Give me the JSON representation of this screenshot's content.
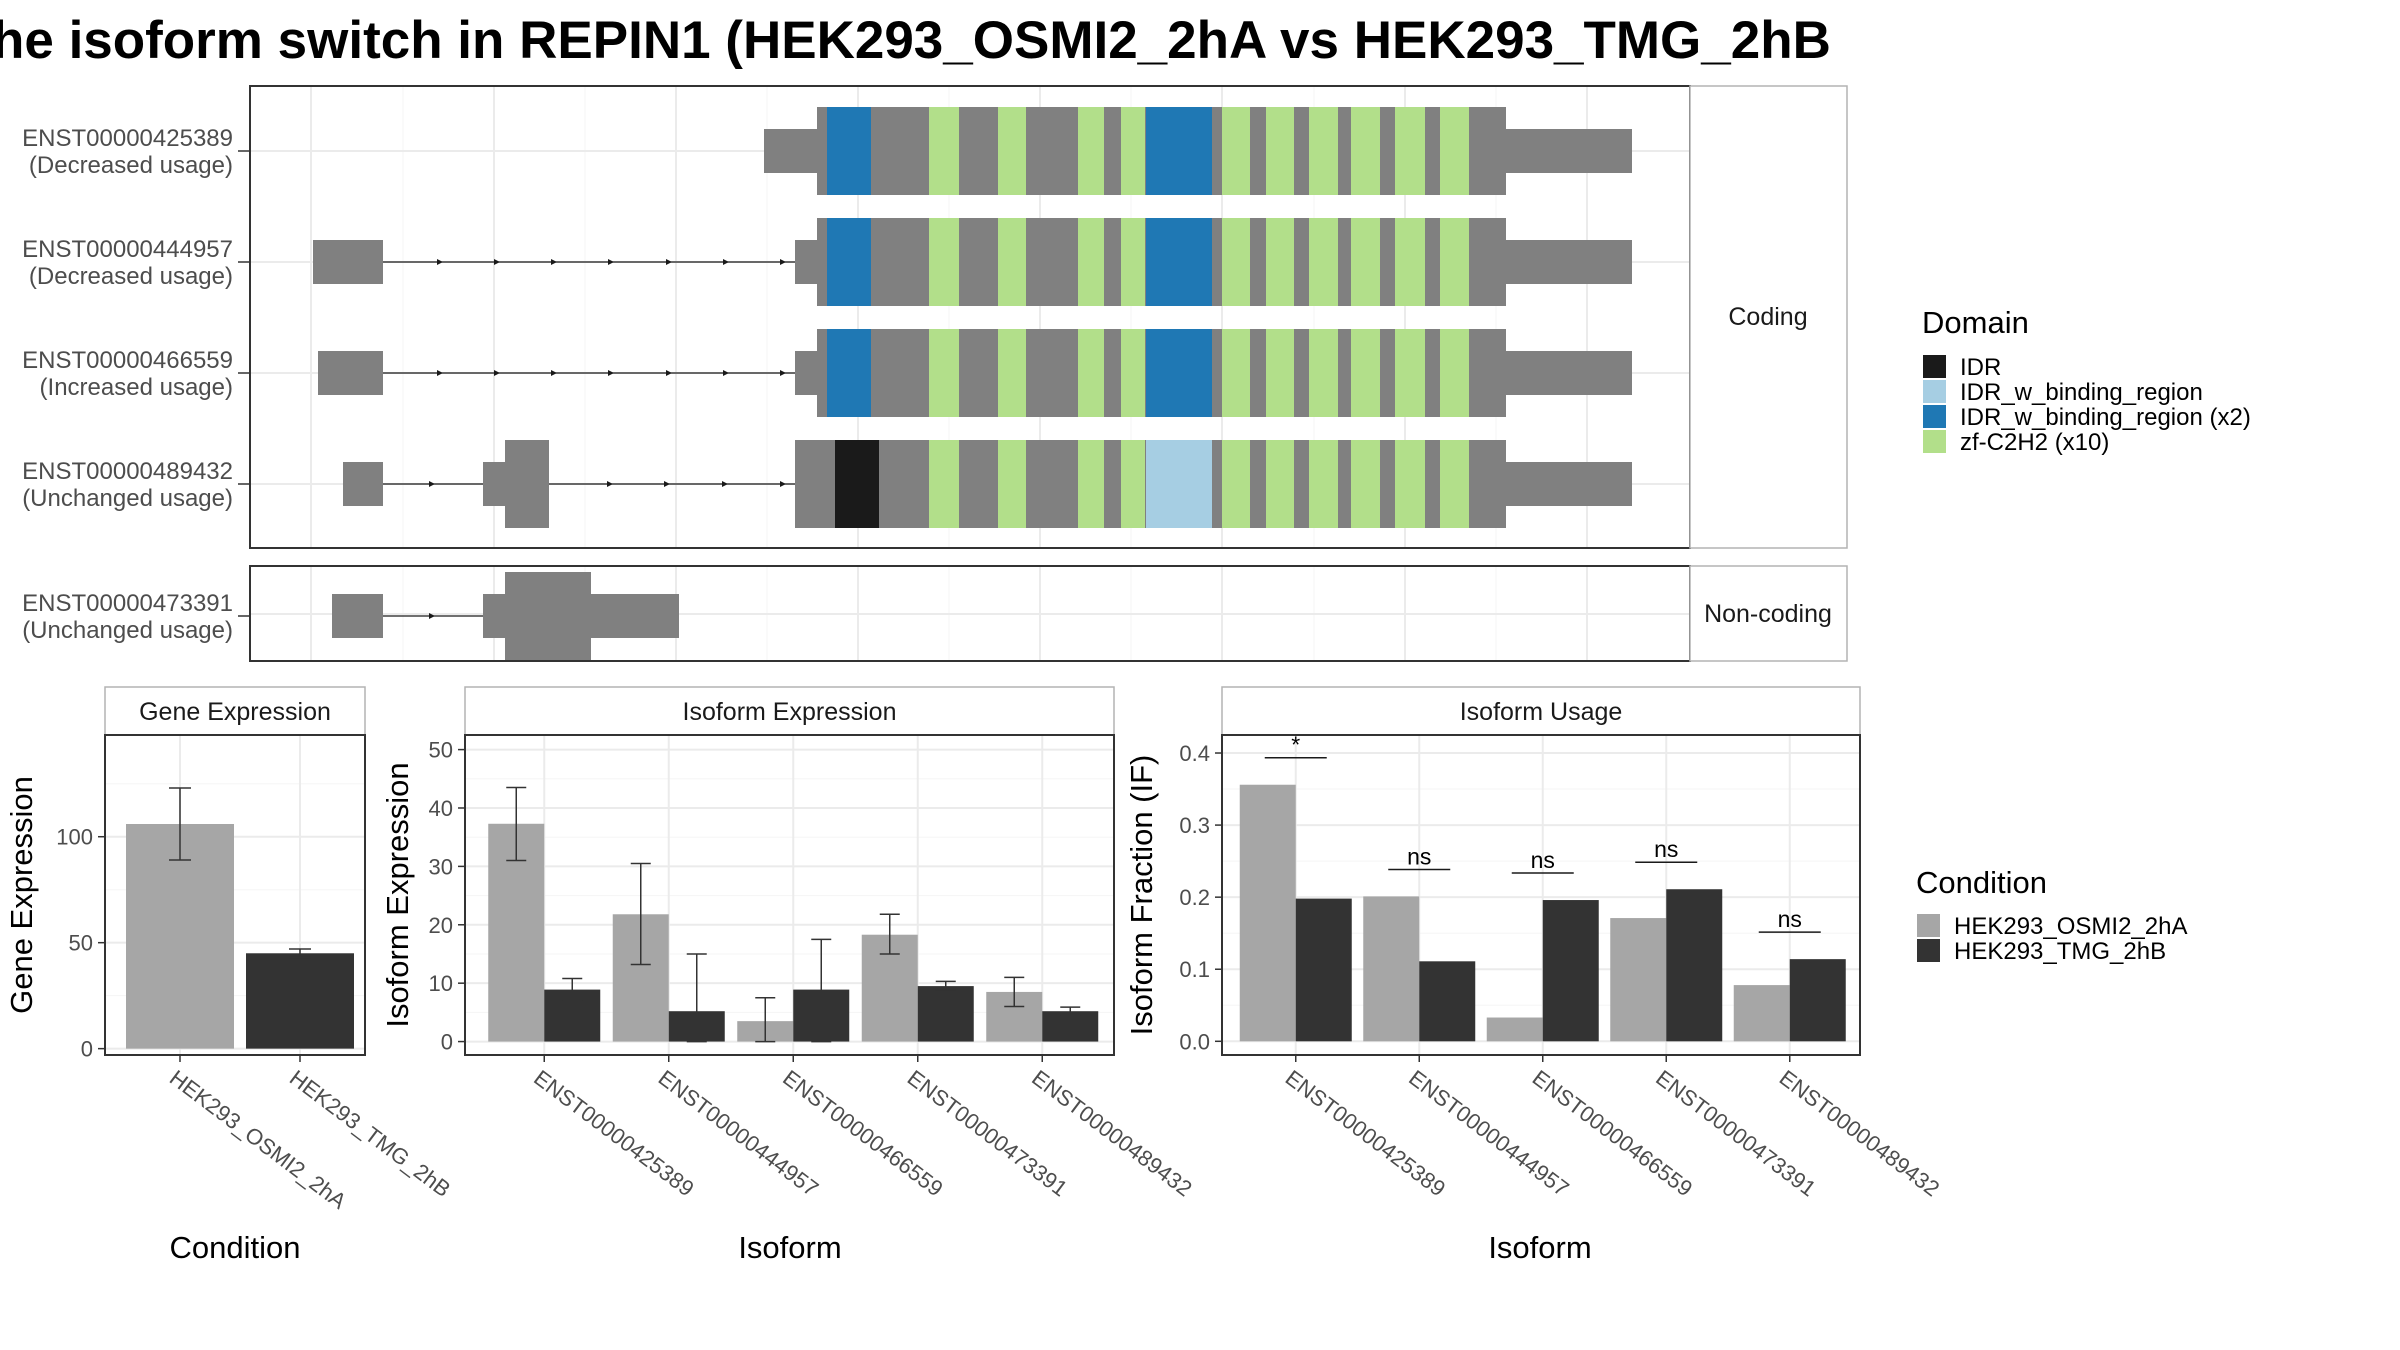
{
  "title": "he isoform switch in REPIN1 (HEK293_OSMI2_2hA vs HEK293_TMG_2hB",
  "domain_legend": {
    "title": "Domain",
    "items": [
      {
        "label": "IDR",
        "color": "#1a1a1a"
      },
      {
        "label": "IDR_w_binding_region",
        "color": "#a6cee3"
      },
      {
        "label": "IDR_w_binding_region (x2)",
        "color": "#1f78b4"
      },
      {
        "label": "zf-C2H2 (x10)",
        "color": "#b2df8a"
      }
    ]
  },
  "condition_legend": {
    "title": "Condition",
    "items": [
      {
        "label": "HEK293_OSMI2_2hA",
        "color": "#a6a6a6"
      },
      {
        "label": "HEK293_TMG_2hB",
        "color": "#333333"
      }
    ]
  },
  "structure": {
    "coding_strip": "Coding",
    "noncoding_strip": "Non-coding",
    "coding_transcripts": [
      {
        "id": "ENST00000425389",
        "usage": "(Decreased usage)"
      },
      {
        "id": "ENST00000444957",
        "usage": "(Decreased usage)"
      },
      {
        "id": "ENST00000466559",
        "usage": "(Increased usage)"
      },
      {
        "id": "ENST00000489432",
        "usage": "(Unchanged usage)"
      }
    ],
    "noncoding_transcripts": [
      {
        "id": "ENST00000473391",
        "usage": "(Unchanged usage)"
      }
    ]
  },
  "chart_data": [
    {
      "type": "bar",
      "title": "Gene Expression",
      "xlabel": "Condition",
      "ylabel": "Gene Expression",
      "categories": [
        "HEK293_OSMI2_2hA",
        "HEK293_TMG_2hB"
      ],
      "values": [
        106,
        45
      ],
      "error_low": [
        89,
        43
      ],
      "error_high": [
        123,
        47
      ],
      "ylim": [
        -3,
        148
      ],
      "yticks": [
        0,
        50,
        100
      ],
      "grid": true
    },
    {
      "type": "bar",
      "title": "Isoform Expression",
      "xlabel": "Isoform",
      "ylabel": "Isoform Expression",
      "categories": [
        "ENST00000425389",
        "ENST00000444957",
        "ENST00000466559",
        "ENST00000473391",
        "ENST00000489432"
      ],
      "series": [
        {
          "name": "HEK293_OSMI2_2hA",
          "values": [
            37.3,
            21.8,
            3.5,
            18.3,
            8.5
          ],
          "error_low": [
            31,
            13.2,
            0,
            15,
            6
          ],
          "error_high": [
            43.5,
            30.5,
            7.5,
            21.8,
            11
          ]
        },
        {
          "name": "HEK293_TMG_2hB",
          "values": [
            8.9,
            5.2,
            8.9,
            9.5,
            5.2
          ],
          "error_low": [
            7,
            0,
            0,
            8.8,
            4.5
          ],
          "error_high": [
            10.8,
            15,
            17.5,
            10.3,
            5.9
          ]
        }
      ],
      "ylim": [
        -2.3,
        52.5
      ],
      "yticks": [
        0,
        10,
        20,
        30,
        40,
        50
      ],
      "grid": true
    },
    {
      "type": "bar",
      "title": "Isoform Usage",
      "xlabel": "Isoform",
      "ylabel": "Isoform Fraction (IF)",
      "categories": [
        "ENST00000425389",
        "ENST00000444957",
        "ENST00000466559",
        "ENST00000473391",
        "ENST00000489432"
      ],
      "series": [
        {
          "name": "HEK293_OSMI2_2hA",
          "values": [
            0.356,
            0.201,
            0.033,
            0.171,
            0.078
          ]
        },
        {
          "name": "HEK293_TMG_2hB",
          "values": [
            0.198,
            0.111,
            0.196,
            0.211,
            0.114
          ]
        }
      ],
      "significance": [
        "*",
        "ns",
        "ns",
        "ns",
        "ns"
      ],
      "ylim": [
        -0.019,
        0.425
      ],
      "yticks": [
        0.0,
        0.1,
        0.2,
        0.3,
        0.4
      ],
      "grid": true
    }
  ]
}
